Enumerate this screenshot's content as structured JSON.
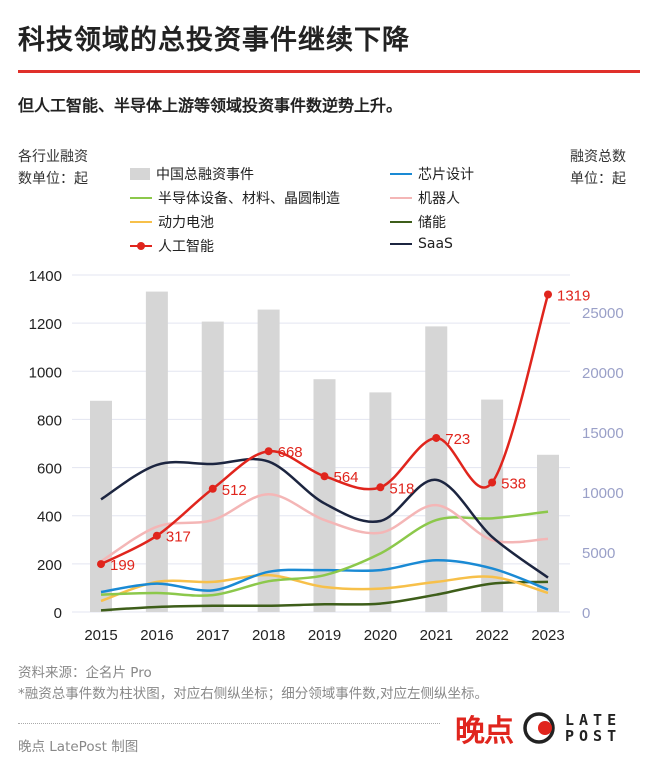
{
  "title": "科技领域的总投资事件继续下降",
  "subtitle": "但人工智能、半导体上游等领域投资事件数逆势上升。",
  "left_axis_note": [
    "各行业融资",
    "数单位：起"
  ],
  "right_axis_note": [
    "融资总数",
    "单位：起"
  ],
  "footer": {
    "source": "资料来源：企名片 Pro",
    "note": "*融资总事件数为柱状图，对应右侧纵坐标；细分领域事件数,对应左侧纵坐标。",
    "credit": "晚点 LatePost 制图",
    "logo_text": "晚点 LATE POST"
  },
  "chart_data": {
    "type": "bar+line",
    "categories": [
      "2015",
      "2016",
      "2017",
      "2018",
      "2019",
      "2020",
      "2021",
      "2022",
      "2023"
    ],
    "left_ylim": [
      0,
      1400
    ],
    "left_ticks": [
      0,
      200,
      400,
      600,
      800,
      1000,
      1200,
      1400
    ],
    "right_ylim": [
      0,
      28083
    ],
    "right_ticks": [
      0,
      5000,
      10000,
      15000,
      20000,
      25000
    ],
    "grid": true,
    "legend_placement": "top",
    "bars": {
      "name": "中国总融资事件",
      "color": "#d6d6d6",
      "axis": "right",
      "values": [
        17600,
        26700,
        24200,
        25200,
        19400,
        18300,
        23800,
        17700,
        13100
      ]
    },
    "series": [
      {
        "name": "芯片设计",
        "color": "#1a8ad4",
        "values": [
          83,
          118,
          90,
          167,
          174,
          174,
          215,
          181,
          93
        ]
      },
      {
        "name": "半导体设备、材料、晶圆制造",
        "color": "#8cc84b",
        "values": [
          72,
          79,
          70,
          128,
          153,
          243,
          382,
          389,
          417
        ]
      },
      {
        "name": "机器人",
        "color": "#f4b6b6",
        "values": [
          210,
          354,
          382,
          489,
          382,
          329,
          444,
          299,
          304
        ]
      },
      {
        "name": "动力电池",
        "color": "#f7c04a",
        "values": [
          46,
          125,
          125,
          153,
          104,
          97,
          125,
          146,
          79
        ]
      },
      {
        "name": "储能",
        "color": "#3e5e1a",
        "values": [
          7,
          21,
          26,
          26,
          32,
          35,
          72,
          118,
          125
        ]
      },
      {
        "name": "人工智能",
        "color": "#e0251d",
        "markers": true,
        "labels": true,
        "values": [
          199,
          317,
          512,
          668,
          564,
          518,
          723,
          538,
          1319
        ]
      },
      {
        "name": "SaaS",
        "color": "#1c2540",
        "values": [
          468,
          611,
          615,
          625,
          451,
          378,
          549,
          312,
          143
        ]
      }
    ]
  }
}
